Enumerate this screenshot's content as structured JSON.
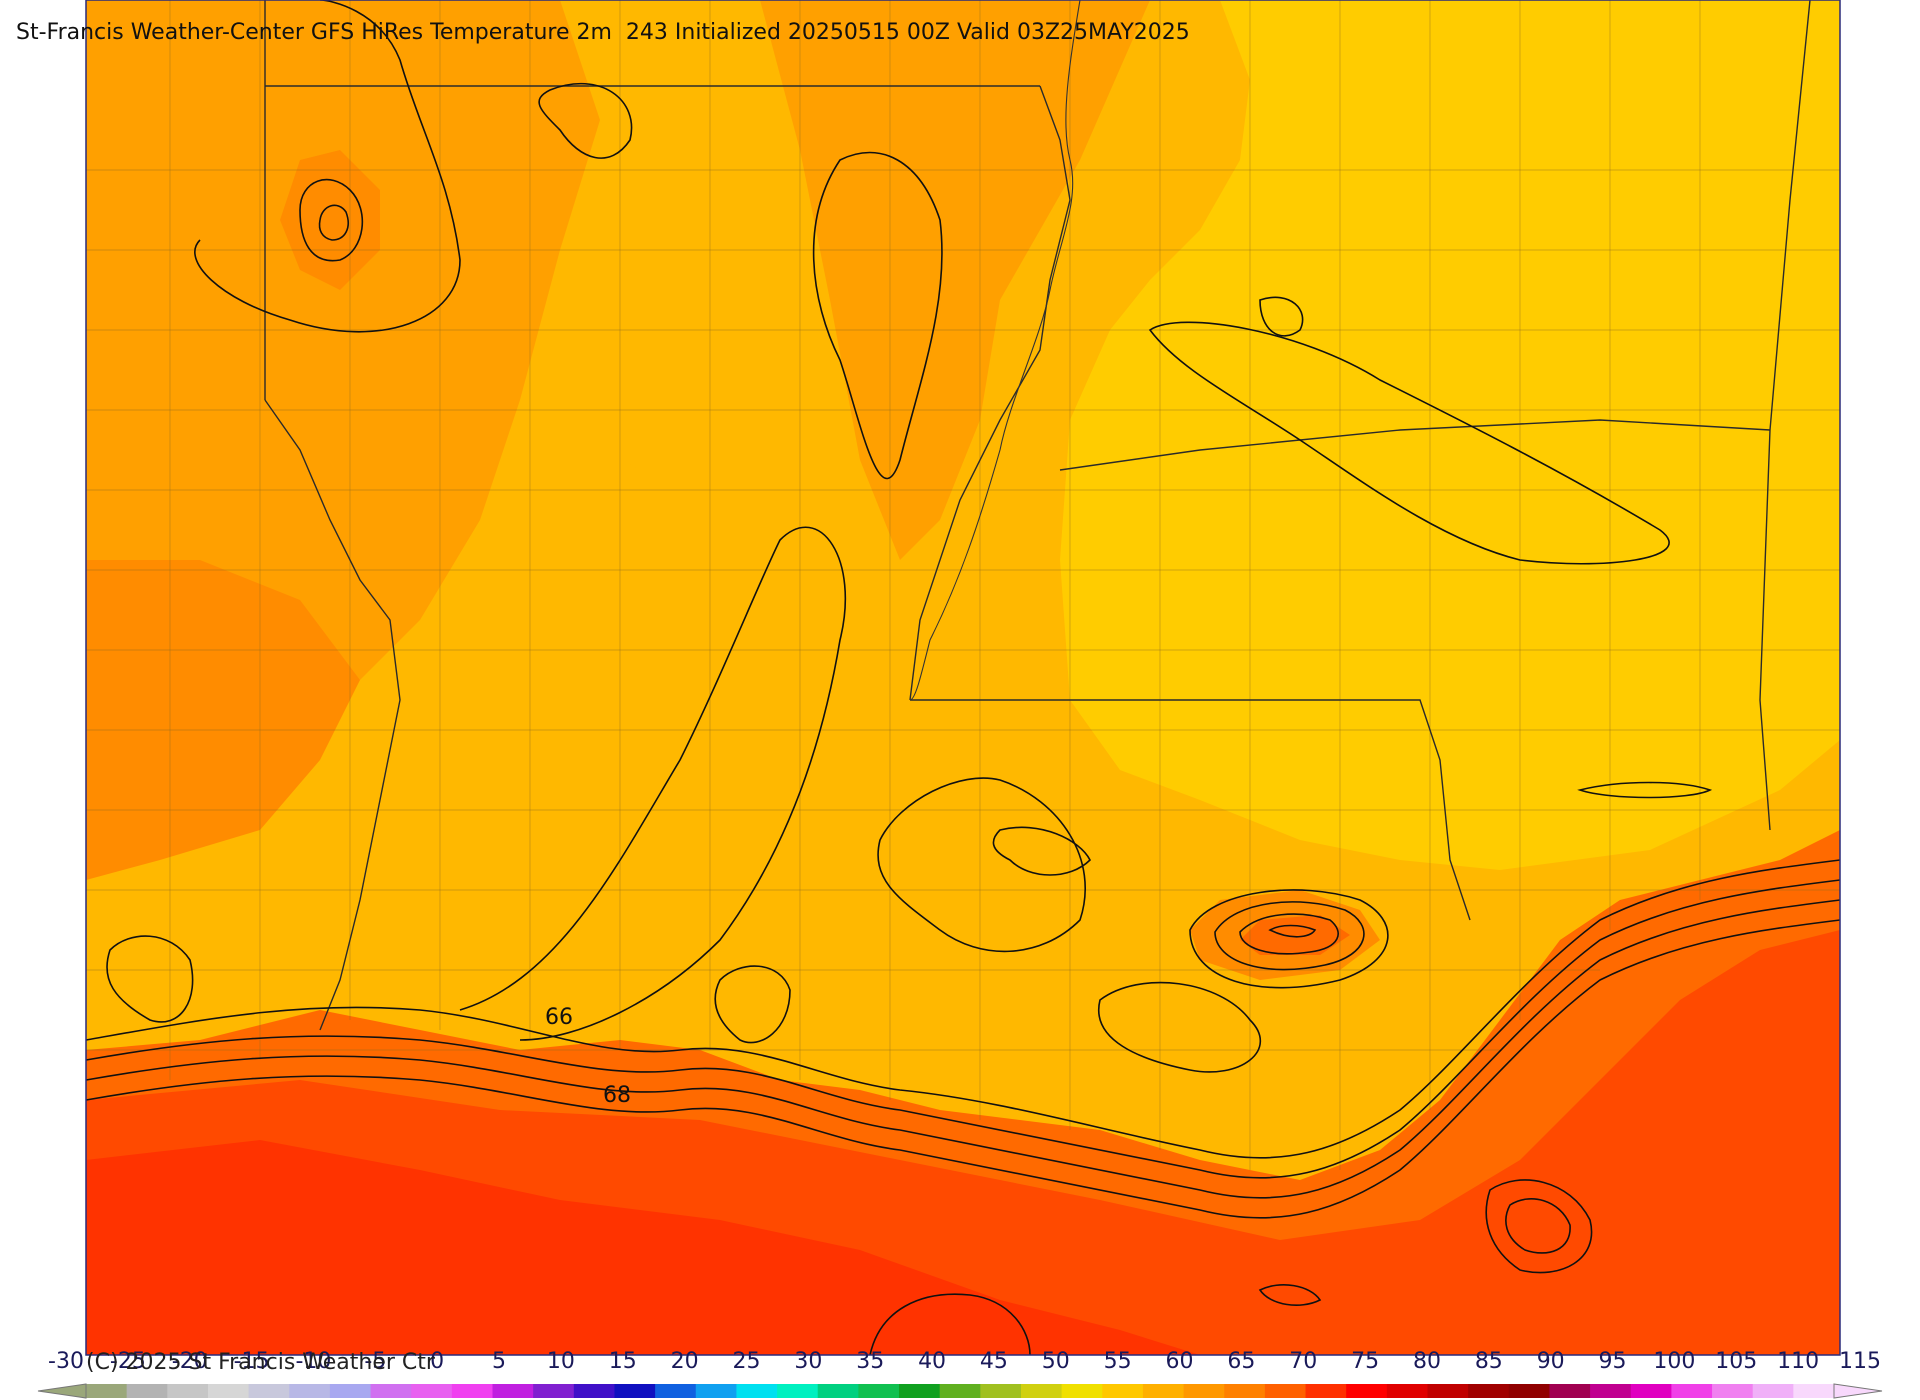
{
  "header": {
    "title": "St-Francis Weather-Center GFS HiRes Temperature 2m  243 Initialized 20250515 00Z Valid 03Z25MAY2025"
  },
  "footer": {
    "copyright": "(C) 2025 St Francis Weather Ctr"
  },
  "map": {
    "parameter": "Temperature 2m",
    "contour_labels": [
      "66",
      "68"
    ],
    "fill_colors": {
      "land_north": "#ffcc00",
      "land_mid": "#ffb800",
      "land_warm": "#ffa000",
      "land_hot": "#ff8c00",
      "coast": "#ff6a00",
      "gulf": "#ff4a00",
      "gulf_hot": "#ff3300"
    }
  },
  "colorbar": {
    "labels": [
      "-30",
      "-25",
      "-20",
      "-15",
      "-10",
      "-5",
      "0",
      "5",
      "10",
      "15",
      "20",
      "25",
      "30",
      "35",
      "40",
      "45",
      "50",
      "55",
      "60",
      "65",
      "70",
      "75",
      "80",
      "85",
      "90",
      "95",
      "100",
      "105",
      "110",
      "115"
    ],
    "colors": [
      "#9aa77a",
      "#b3b3b3",
      "#c6c6c6",
      "#d6d6d6",
      "#c8c8dc",
      "#b8b8e6",
      "#a8a8f0",
      "#d070f0",
      "#e860f0",
      "#f040f0",
      "#c020e0",
      "#8020d0",
      "#4010c8",
      "#1010c0",
      "#1060e0",
      "#10a0f0",
      "#00e0f0",
      "#00f0c0",
      "#00d080",
      "#10c050",
      "#10a020",
      "#60b020",
      "#a0c020",
      "#d0d010",
      "#f0e000",
      "#ffc800",
      "#ffb000",
      "#ff9800",
      "#ff8000",
      "#ff6000",
      "#ff3000",
      "#ff0000",
      "#e00000",
      "#c00000",
      "#a00000",
      "#900000",
      "#a00050",
      "#c00090",
      "#e000c0",
      "#f040e8",
      "#f080f0",
      "#f0b0f8",
      "#f8d8fc"
    ]
  }
}
